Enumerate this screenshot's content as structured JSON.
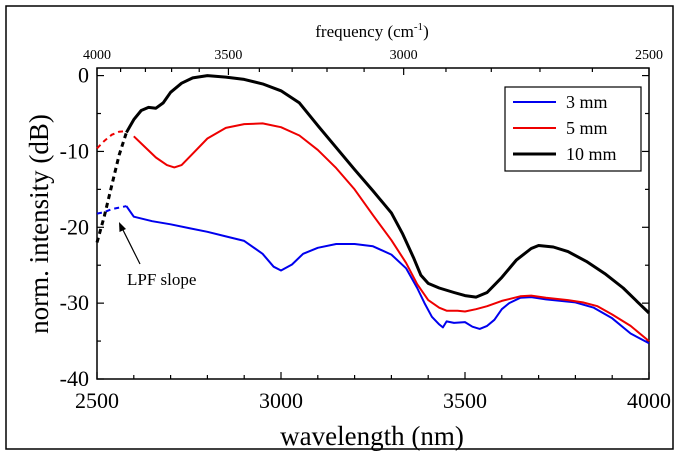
{
  "chart_data": {
    "type": "line",
    "xlabel": "wavelength (nm)",
    "ylabel": "norm. intensity (dB)",
    "top_axis_label_main": "frequency (cm",
    "top_axis_label_sup": "-1",
    "top_axis_label_close": ")",
    "xlim": [
      2500,
      4000
    ],
    "ylim": [
      -40,
      1
    ],
    "x_ticks": [
      2500,
      3000,
      3500,
      4000
    ],
    "x_tick_labels": [
      "2500",
      "3000",
      "3500",
      "4000"
    ],
    "y_ticks": [
      0,
      -10,
      -20,
      -30,
      -40
    ],
    "y_tick_labels": [
      "0",
      "-10",
      "-20",
      "-30",
      "-40"
    ],
    "top_ticks": [
      4000,
      3500,
      3000,
      2500
    ],
    "top_tick_labels": [
      "4000",
      "3500",
      "3000",
      "2500"
    ],
    "legend_position": "top-right",
    "annotation": {
      "text": "LPF slope",
      "points_to": [
        2540,
        -19.5
      ]
    },
    "series": [
      {
        "name": "3 mm",
        "color": "#0000ee",
        "dashed_until": 2580,
        "points": [
          [
            2500,
            -18.2
          ],
          [
            2520,
            -18
          ],
          [
            2540,
            -17.6
          ],
          [
            2560,
            -17.4
          ],
          [
            2580,
            -17.2
          ],
          [
            2600,
            -18.6
          ],
          [
            2650,
            -19.2
          ],
          [
            2700,
            -19.6
          ],
          [
            2750,
            -20.1
          ],
          [
            2800,
            -20.6
          ],
          [
            2850,
            -21.2
          ],
          [
            2900,
            -21.8
          ],
          [
            2950,
            -23.5
          ],
          [
            2980,
            -25.2
          ],
          [
            3000,
            -25.7
          ],
          [
            3030,
            -24.9
          ],
          [
            3060,
            -23.5
          ],
          [
            3100,
            -22.7
          ],
          [
            3150,
            -22.2
          ],
          [
            3200,
            -22.2
          ],
          [
            3250,
            -22.5
          ],
          [
            3300,
            -23.6
          ],
          [
            3340,
            -25.4
          ],
          [
            3370,
            -28
          ],
          [
            3390,
            -30
          ],
          [
            3410,
            -31.8
          ],
          [
            3430,
            -32.8
          ],
          [
            3440,
            -33.2
          ],
          [
            3450,
            -32.4
          ],
          [
            3470,
            -32.6
          ],
          [
            3500,
            -32.5
          ],
          [
            3520,
            -33.1
          ],
          [
            3540,
            -33.4
          ],
          [
            3560,
            -33
          ],
          [
            3580,
            -32.2
          ],
          [
            3600,
            -30.8
          ],
          [
            3620,
            -30
          ],
          [
            3650,
            -29.3
          ],
          [
            3680,
            -29.2
          ],
          [
            3720,
            -29.5
          ],
          [
            3760,
            -29.7
          ],
          [
            3800,
            -29.9
          ],
          [
            3850,
            -30.6
          ],
          [
            3900,
            -32
          ],
          [
            3950,
            -34
          ],
          [
            4000,
            -35.3
          ]
        ]
      },
      {
        "name": "5 mm",
        "color": "#ee0000",
        "dashed_until": 2590,
        "points": [
          [
            2500,
            -9.6
          ],
          [
            2520,
            -8.6
          ],
          [
            2540,
            -7.8
          ],
          [
            2560,
            -7.4
          ],
          [
            2580,
            -7.3
          ],
          [
            2600,
            -8
          ],
          [
            2630,
            -9.4
          ],
          [
            2660,
            -10.8
          ],
          [
            2690,
            -11.8
          ],
          [
            2710,
            -12.1
          ],
          [
            2730,
            -11.8
          ],
          [
            2760,
            -10.3
          ],
          [
            2800,
            -8.3
          ],
          [
            2850,
            -6.9
          ],
          [
            2900,
            -6.4
          ],
          [
            2950,
            -6.3
          ],
          [
            3000,
            -6.8
          ],
          [
            3050,
            -7.9
          ],
          [
            3100,
            -9.8
          ],
          [
            3150,
            -12.2
          ],
          [
            3200,
            -15
          ],
          [
            3250,
            -18.4
          ],
          [
            3300,
            -21.7
          ],
          [
            3340,
            -24.7
          ],
          [
            3370,
            -27.5
          ],
          [
            3400,
            -29.6
          ],
          [
            3430,
            -30.6
          ],
          [
            3450,
            -31
          ],
          [
            3480,
            -31
          ],
          [
            3500,
            -31.1
          ],
          [
            3530,
            -30.8
          ],
          [
            3560,
            -30.4
          ],
          [
            3600,
            -29.7
          ],
          [
            3650,
            -29.1
          ],
          [
            3680,
            -29
          ],
          [
            3720,
            -29.3
          ],
          [
            3780,
            -29.6
          ],
          [
            3820,
            -29.9
          ],
          [
            3860,
            -30.4
          ],
          [
            3900,
            -31.5
          ],
          [
            3950,
            -33
          ],
          [
            4000,
            -35
          ]
        ]
      },
      {
        "name": "10 mm",
        "color": "#000000",
        "dashed_until": 2580,
        "points": [
          [
            2500,
            -22
          ],
          [
            2520,
            -18.5
          ],
          [
            2540,
            -14.5
          ],
          [
            2560,
            -10.5
          ],
          [
            2580,
            -7.5
          ],
          [
            2600,
            -5.8
          ],
          [
            2620,
            -4.6
          ],
          [
            2640,
            -4.2
          ],
          [
            2660,
            -4.3
          ],
          [
            2680,
            -3.6
          ],
          [
            2700,
            -2.2
          ],
          [
            2730,
            -1
          ],
          [
            2760,
            -0.3
          ],
          [
            2800,
            0
          ],
          [
            2850,
            -0.2
          ],
          [
            2900,
            -0.5
          ],
          [
            2950,
            -1.1
          ],
          [
            3000,
            -2
          ],
          [
            3050,
            -3.6
          ],
          [
            3100,
            -6.6
          ],
          [
            3150,
            -9.5
          ],
          [
            3200,
            -12.4
          ],
          [
            3250,
            -15.2
          ],
          [
            3300,
            -18.1
          ],
          [
            3330,
            -20.8
          ],
          [
            3360,
            -24
          ],
          [
            3380,
            -26.3
          ],
          [
            3400,
            -27.4
          ],
          [
            3430,
            -28
          ],
          [
            3470,
            -28.6
          ],
          [
            3500,
            -29
          ],
          [
            3530,
            -29.2
          ],
          [
            3560,
            -28.6
          ],
          [
            3600,
            -26.6
          ],
          [
            3640,
            -24.3
          ],
          [
            3680,
            -22.8
          ],
          [
            3700,
            -22.4
          ],
          [
            3740,
            -22.6
          ],
          [
            3780,
            -23.2
          ],
          [
            3830,
            -24.5
          ],
          [
            3880,
            -26.1
          ],
          [
            3930,
            -28
          ],
          [
            3970,
            -29.9
          ],
          [
            4000,
            -31.3
          ]
        ]
      }
    ]
  }
}
